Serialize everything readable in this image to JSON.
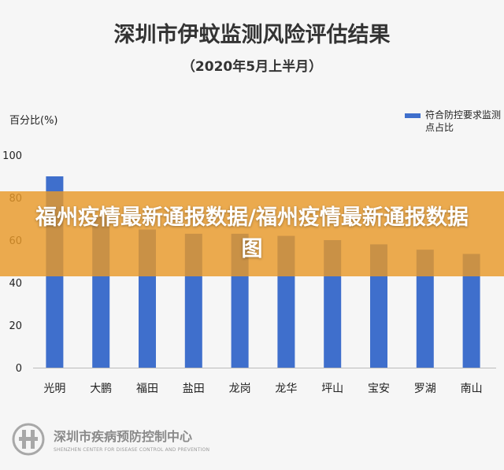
{
  "banner": {
    "text": "福州疫情最新通报数据/福州疫情最新通报数据图"
  },
  "footer": {
    "org_name": "深圳市疾病预防控制中心",
    "org_sub": "SHENZHEN CENTER FOR DISEASE CONTROL AND PREVENTION"
  },
  "colors": {
    "bar": "#3f6fcc",
    "banner": "#e89828",
    "background": "#f6f6f6"
  },
  "chart_data": {
    "type": "bar",
    "title": "深圳市伊蚊监测风险评估结果",
    "subtitle": "（2020年5月上半月）",
    "ylabel": "百分比(%)",
    "xlabel": "",
    "categories": [
      "光明",
      "大鹏",
      "福田",
      "盐田",
      "龙岗",
      "龙华",
      "坪山",
      "宝安",
      "罗湖",
      "南山"
    ],
    "series": [
      {
        "name": "符合防控要求监测点占比",
        "values": [
          90,
          71,
          65,
          63,
          63,
          62,
          60,
          58,
          55.5,
          53.5
        ]
      }
    ],
    "ylim": [
      0,
      100
    ],
    "yticks": [
      0,
      20,
      40,
      60,
      80,
      100
    ],
    "grid": false,
    "legend_position": "top-right"
  }
}
